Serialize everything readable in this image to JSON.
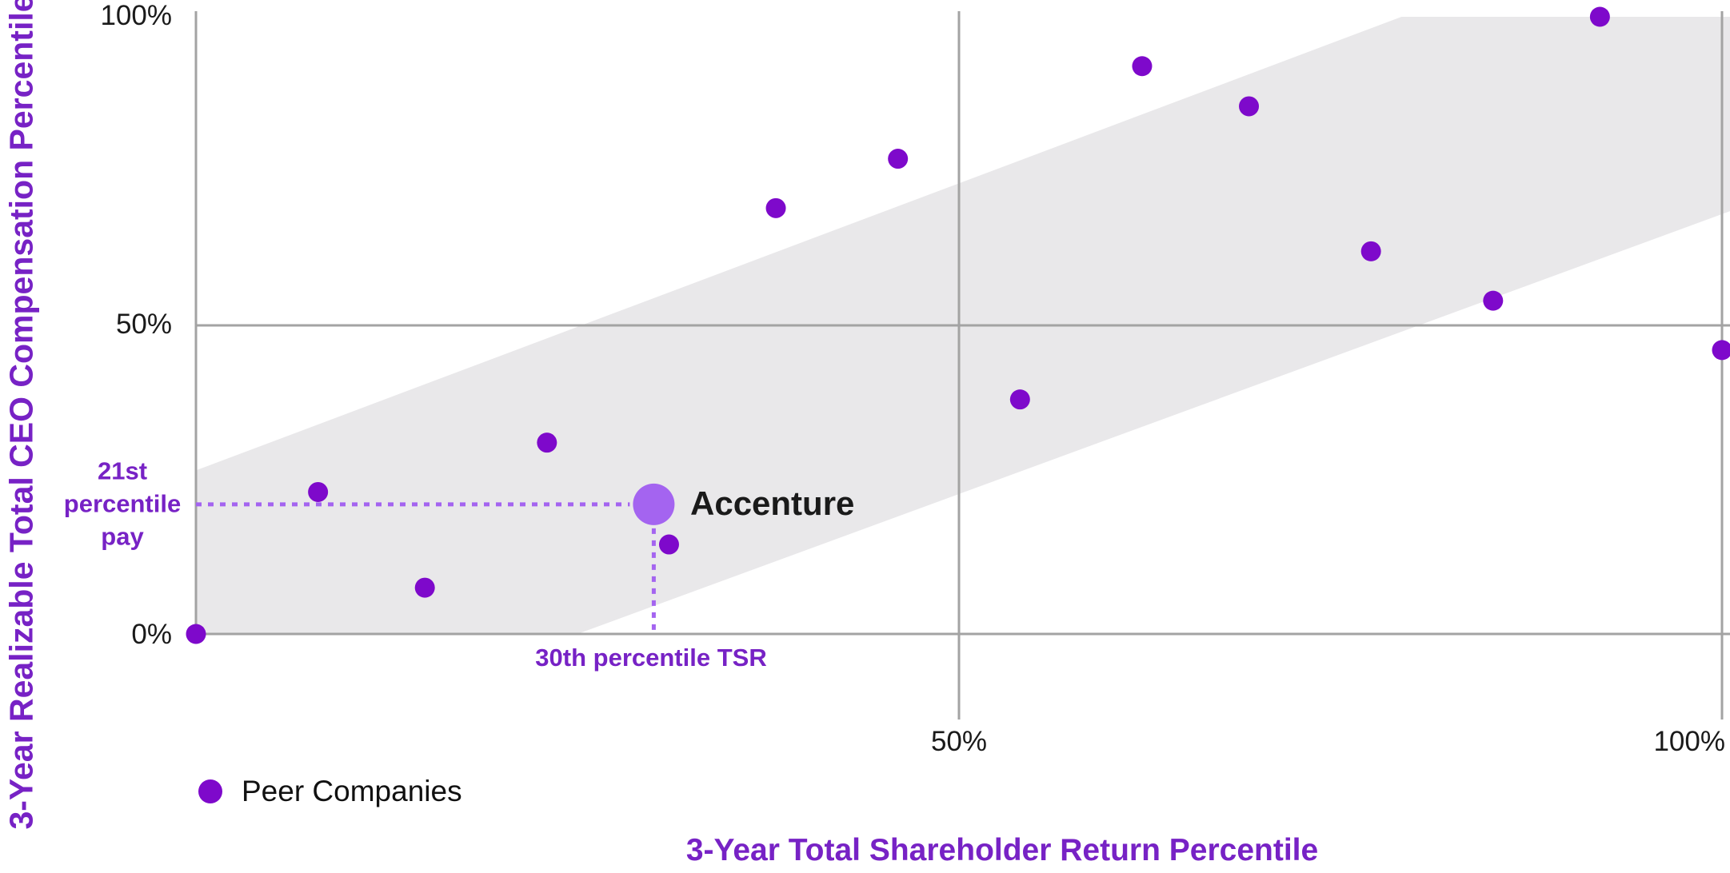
{
  "axes": {
    "y_title": "3-Year Realizable Total CEO Compensation Percentile",
    "x_title": "3-Year Total Shareholder Return Percentile",
    "y_ticks": [
      {
        "label": "100%",
        "value": 100
      },
      {
        "label": "50%",
        "value": 50
      },
      {
        "label": "0%",
        "value": 0
      }
    ],
    "x_ticks": [
      {
        "label": "50%",
        "value": 50
      },
      {
        "label": "100%",
        "value": 100
      }
    ]
  },
  "annotations": {
    "pay_label": "21st percentile pay",
    "tsr_label": "30th percentile TSR",
    "company_label": "Accenture"
  },
  "legend": {
    "label": "Peer Companies"
  },
  "colors": {
    "peer_dot": "#7E09CB",
    "accenture_dot": "#A464F0",
    "callout_dotted": "#A464F0",
    "band": "#E9E8EA",
    "grid": "#A3A3A3",
    "purple_text": "#7722C5",
    "dark_text": "#1A1A1A"
  },
  "chart_data": {
    "type": "scatter",
    "title": "",
    "xlabel": "3-Year Total Shareholder Return Percentile",
    "ylabel": "3-Year Realizable Total CEO Compensation Percentile",
    "xlim": [
      0,
      100
    ],
    "ylim": [
      0,
      100
    ],
    "x_unit": "percentile",
    "y_unit": "percentile",
    "grid": {
      "horizontal_lines_at": [
        0,
        50
      ],
      "vertical_lines_at": [
        50,
        100
      ]
    },
    "alignment_band_polygon": [
      [
        0,
        26.5
      ],
      [
        79,
        100
      ],
      [
        100,
        100
      ],
      [
        100,
        68.5
      ],
      [
        25,
        0
      ],
      [
        0,
        0
      ]
    ],
    "series": [
      {
        "name": "Peer Companies",
        "marker": "circle",
        "points": [
          [
            92,
            100
          ],
          [
            62,
            92
          ],
          [
            69,
            85.5
          ],
          [
            46,
            77
          ],
          [
            38,
            69
          ],
          [
            77,
            62
          ],
          [
            85,
            54
          ],
          [
            100,
            46
          ],
          [
            54,
            38
          ],
          [
            23,
            31
          ],
          [
            8,
            23
          ],
          [
            31,
            14.5
          ],
          [
            15,
            7.5
          ],
          [
            0,
            0
          ]
        ]
      },
      {
        "name": "Accenture",
        "marker": "circle-large",
        "points": [
          [
            30,
            21
          ]
        ]
      }
    ],
    "callout": {
      "x": 30,
      "y": 21
    },
    "legend_position": "bottom-left"
  }
}
